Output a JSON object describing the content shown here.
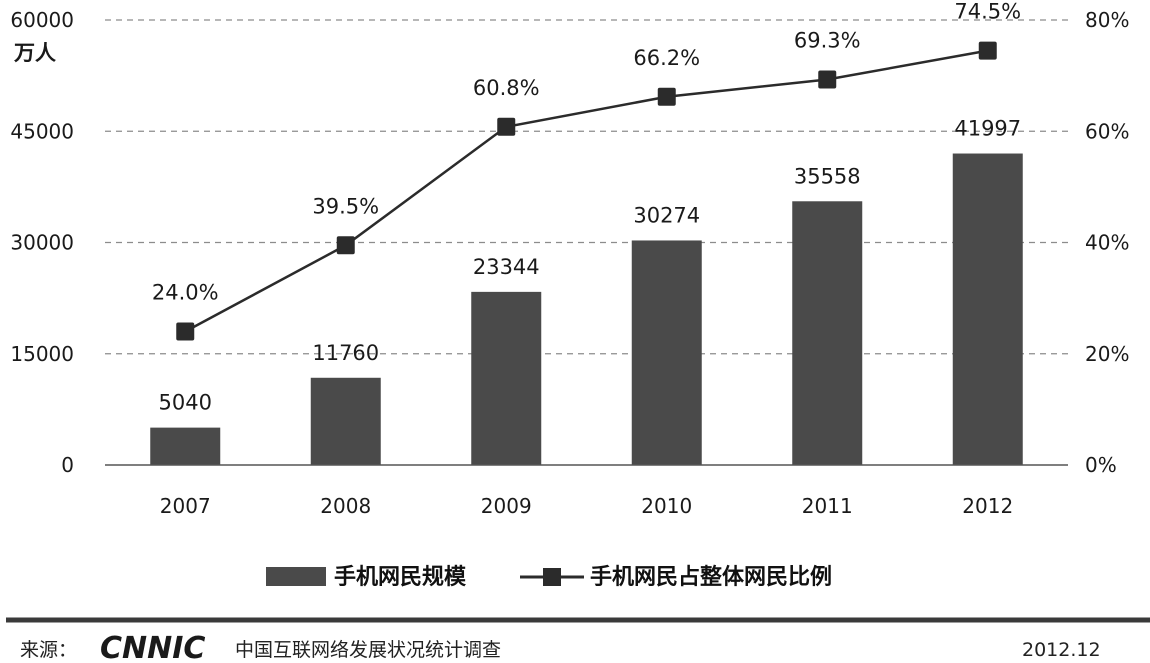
{
  "chart_data": {
    "type": "bar",
    "categories": [
      "2007",
      "2008",
      "2009",
      "2010",
      "2011",
      "2012"
    ],
    "series": [
      {
        "name": "手机网民规模",
        "type": "bar",
        "axis": "left",
        "values": [
          5040,
          11760,
          23344,
          30274,
          35558,
          41997
        ],
        "labels": [
          "5040",
          "11760",
          "23344",
          "30274",
          "35558",
          "41997"
        ]
      },
      {
        "name": "手机网民占整体网民比例",
        "type": "line",
        "axis": "right",
        "values": [
          24.0,
          39.5,
          60.8,
          66.2,
          69.3,
          74.5
        ],
        "labels": [
          "24.0%",
          "39.5%",
          "60.8%",
          "66.2%",
          "69.3%",
          "74.5%"
        ]
      }
    ],
    "y_left": {
      "unit": "万人",
      "lim": [
        0,
        60000
      ],
      "ticks": [
        "0",
        "15000",
        "30000",
        "45000",
        "60000"
      ]
    },
    "y_right": {
      "lim": [
        0,
        80
      ],
      "ticks": [
        "0%",
        "20%",
        "40%",
        "60%",
        "80%"
      ]
    },
    "grid": true,
    "legend_position": "bottom"
  },
  "footer": {
    "source_label": "来源：",
    "logo_text": "CNNIC",
    "org_name": "中国互联网络发展状况统计调查",
    "date": "2012.12"
  },
  "colors": {
    "bar": "#4a4a4a",
    "line": "#2b2b2b",
    "grid": "#8c8c8c"
  }
}
